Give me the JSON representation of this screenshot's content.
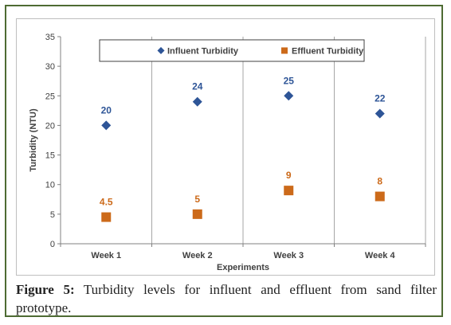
{
  "chart_data": {
    "type": "scatter",
    "categories": [
      "Week 1",
      "Week 2",
      "Week 3",
      "Week 4"
    ],
    "series": [
      {
        "name": "Influent Turbidity",
        "values": [
          20,
          24,
          25,
          22
        ],
        "labels": [
          "20",
          "24",
          "25",
          "22"
        ],
        "color": "#2e5597",
        "marker": "diamond"
      },
      {
        "name": "Effluent Turbidity",
        "values": [
          4.5,
          5,
          9,
          8
        ],
        "labels": [
          "4.5",
          "5",
          "9",
          "8"
        ],
        "color": "#cc6a1a",
        "marker": "square"
      }
    ],
    "xlabel": "Experiments",
    "ylabel": "Turbidity (NTU)",
    "ylim": [
      0,
      35
    ],
    "yticks": [
      "0",
      "5",
      "10",
      "15",
      "20",
      "25",
      "30",
      "35"
    ],
    "ytick_values": [
      0,
      5,
      10,
      15,
      20,
      25,
      30,
      35
    ],
    "grid": "vertical",
    "legend_position": "top"
  },
  "caption": {
    "label": "Figure 5:",
    "text": " Turbidity levels for influent and effluent from sand filter prototype."
  }
}
